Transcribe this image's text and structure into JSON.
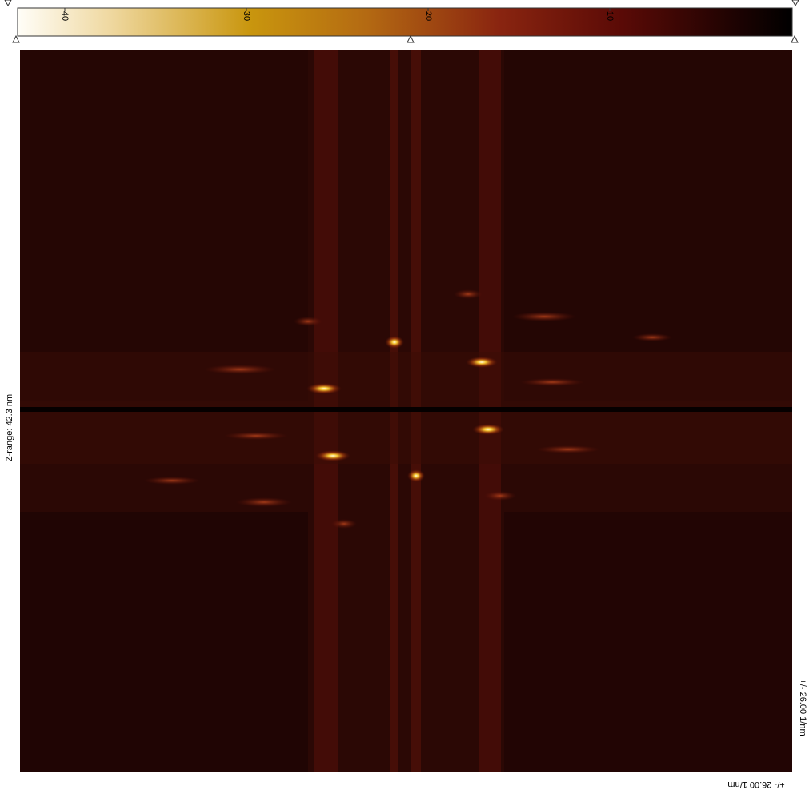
{
  "colorbar": {
    "ticks": [
      40,
      30,
      20,
      10
    ]
  },
  "z_range_label": "Z-range: 42.3 nm",
  "scale_label": "+/- 26.00 1/nm"
}
